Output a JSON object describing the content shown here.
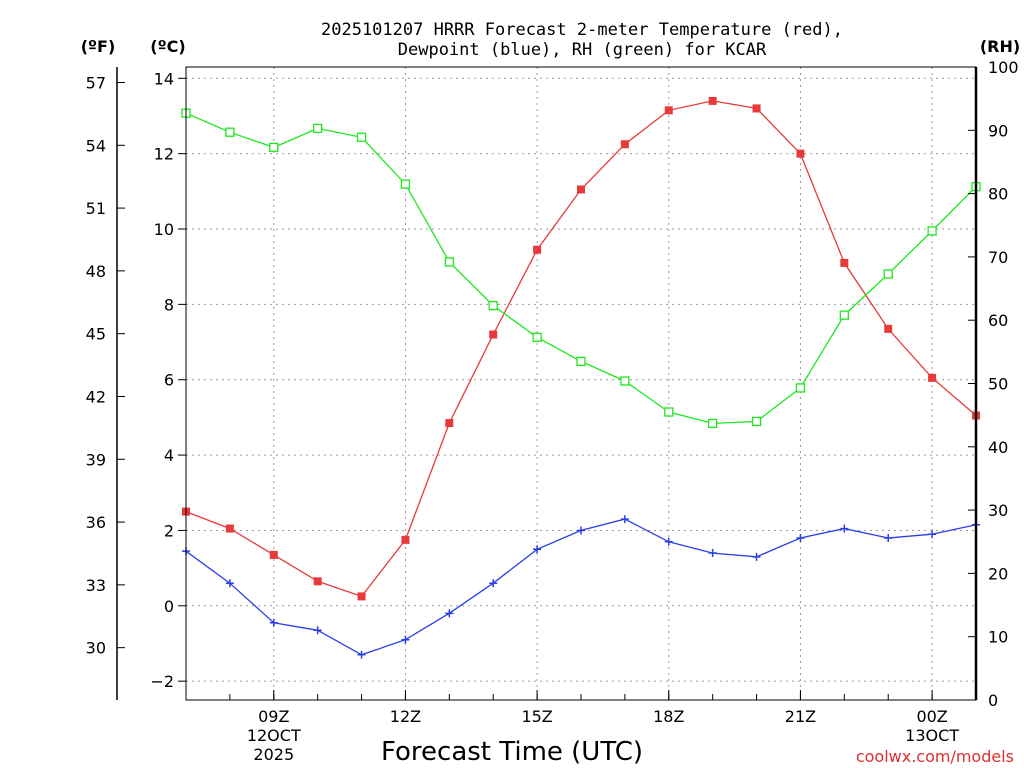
{
  "chart_data": {
    "type": "line",
    "title_line1": "2025101207 HRRR Forecast 2-meter Temperature (red),",
    "title_line2": "Dewpoint (blue), RH (green) for KCAR",
    "xlabel": "Forecast Time (UTC)",
    "credit": "coolwx.com/models",
    "left_unit_f": "(ºF)",
    "left_unit_c": "(ºC)",
    "right_unit": "(RH)",
    "x_hours": [
      7,
      8,
      9,
      10,
      11,
      12,
      13,
      14,
      15,
      16,
      17,
      18,
      19,
      20,
      21,
      22,
      23,
      24,
      25
    ],
    "xlim": [
      7,
      25
    ],
    "x_ticks": [
      {
        "h": 9,
        "label": "09Z",
        "sub1": "12OCT",
        "sub2": "2025"
      },
      {
        "h": 12,
        "label": "12Z",
        "sub1": "",
        "sub2": ""
      },
      {
        "h": 15,
        "label": "15Z",
        "sub1": "",
        "sub2": ""
      },
      {
        "h": 18,
        "label": "18Z",
        "sub1": "",
        "sub2": ""
      },
      {
        "h": 21,
        "label": "21Z",
        "sub1": "",
        "sub2": ""
      },
      {
        "h": 24,
        "label": "00Z",
        "sub1": "13OCT",
        "sub2": ""
      }
    ],
    "c_axis": {
      "ylim": [
        -2.5,
        14.3
      ],
      "ticks": [
        -2,
        0,
        2,
        4,
        6,
        8,
        10,
        12,
        14
      ]
    },
    "f_axis": {
      "ticks": [
        30,
        33,
        36,
        39,
        42,
        45,
        48,
        51,
        54,
        57
      ]
    },
    "rh_axis": {
      "ylim": [
        0,
        100
      ],
      "ticks": [
        0,
        10,
        20,
        30,
        40,
        50,
        60,
        70,
        80,
        90,
        100
      ]
    },
    "series": [
      {
        "name": "Temperature",
        "color": "#e83a3a",
        "marker": "filled-square",
        "axis": "c",
        "values": [
          2.5,
          2.05,
          1.35,
          0.65,
          0.25,
          1.75,
          4.85,
          7.2,
          9.45,
          11.05,
          12.25,
          13.15,
          13.4,
          13.2,
          12.0,
          9.1,
          7.35,
          6.05,
          5.05
        ]
      },
      {
        "name": "Dewpoint",
        "color": "#2a3ee8",
        "marker": "plus",
        "axis": "c",
        "values": [
          1.45,
          0.6,
          -0.45,
          -0.65,
          -1.3,
          -0.9,
          -0.2,
          0.6,
          1.5,
          2.0,
          2.3,
          1.7,
          1.4,
          1.3,
          1.8,
          2.05,
          1.8,
          1.9,
          2.15
        ]
      },
      {
        "name": "RH",
        "color": "#1ee81e",
        "marker": "open-square",
        "axis": "rh",
        "values": [
          92.7,
          89.7,
          87.3,
          90.3,
          88.9,
          81.5,
          69.2,
          62.3,
          57.3,
          53.5,
          50.4,
          45.5,
          43.7,
          44.0,
          49.3,
          60.8,
          67.3,
          74.1,
          81.1
        ]
      }
    ]
  }
}
